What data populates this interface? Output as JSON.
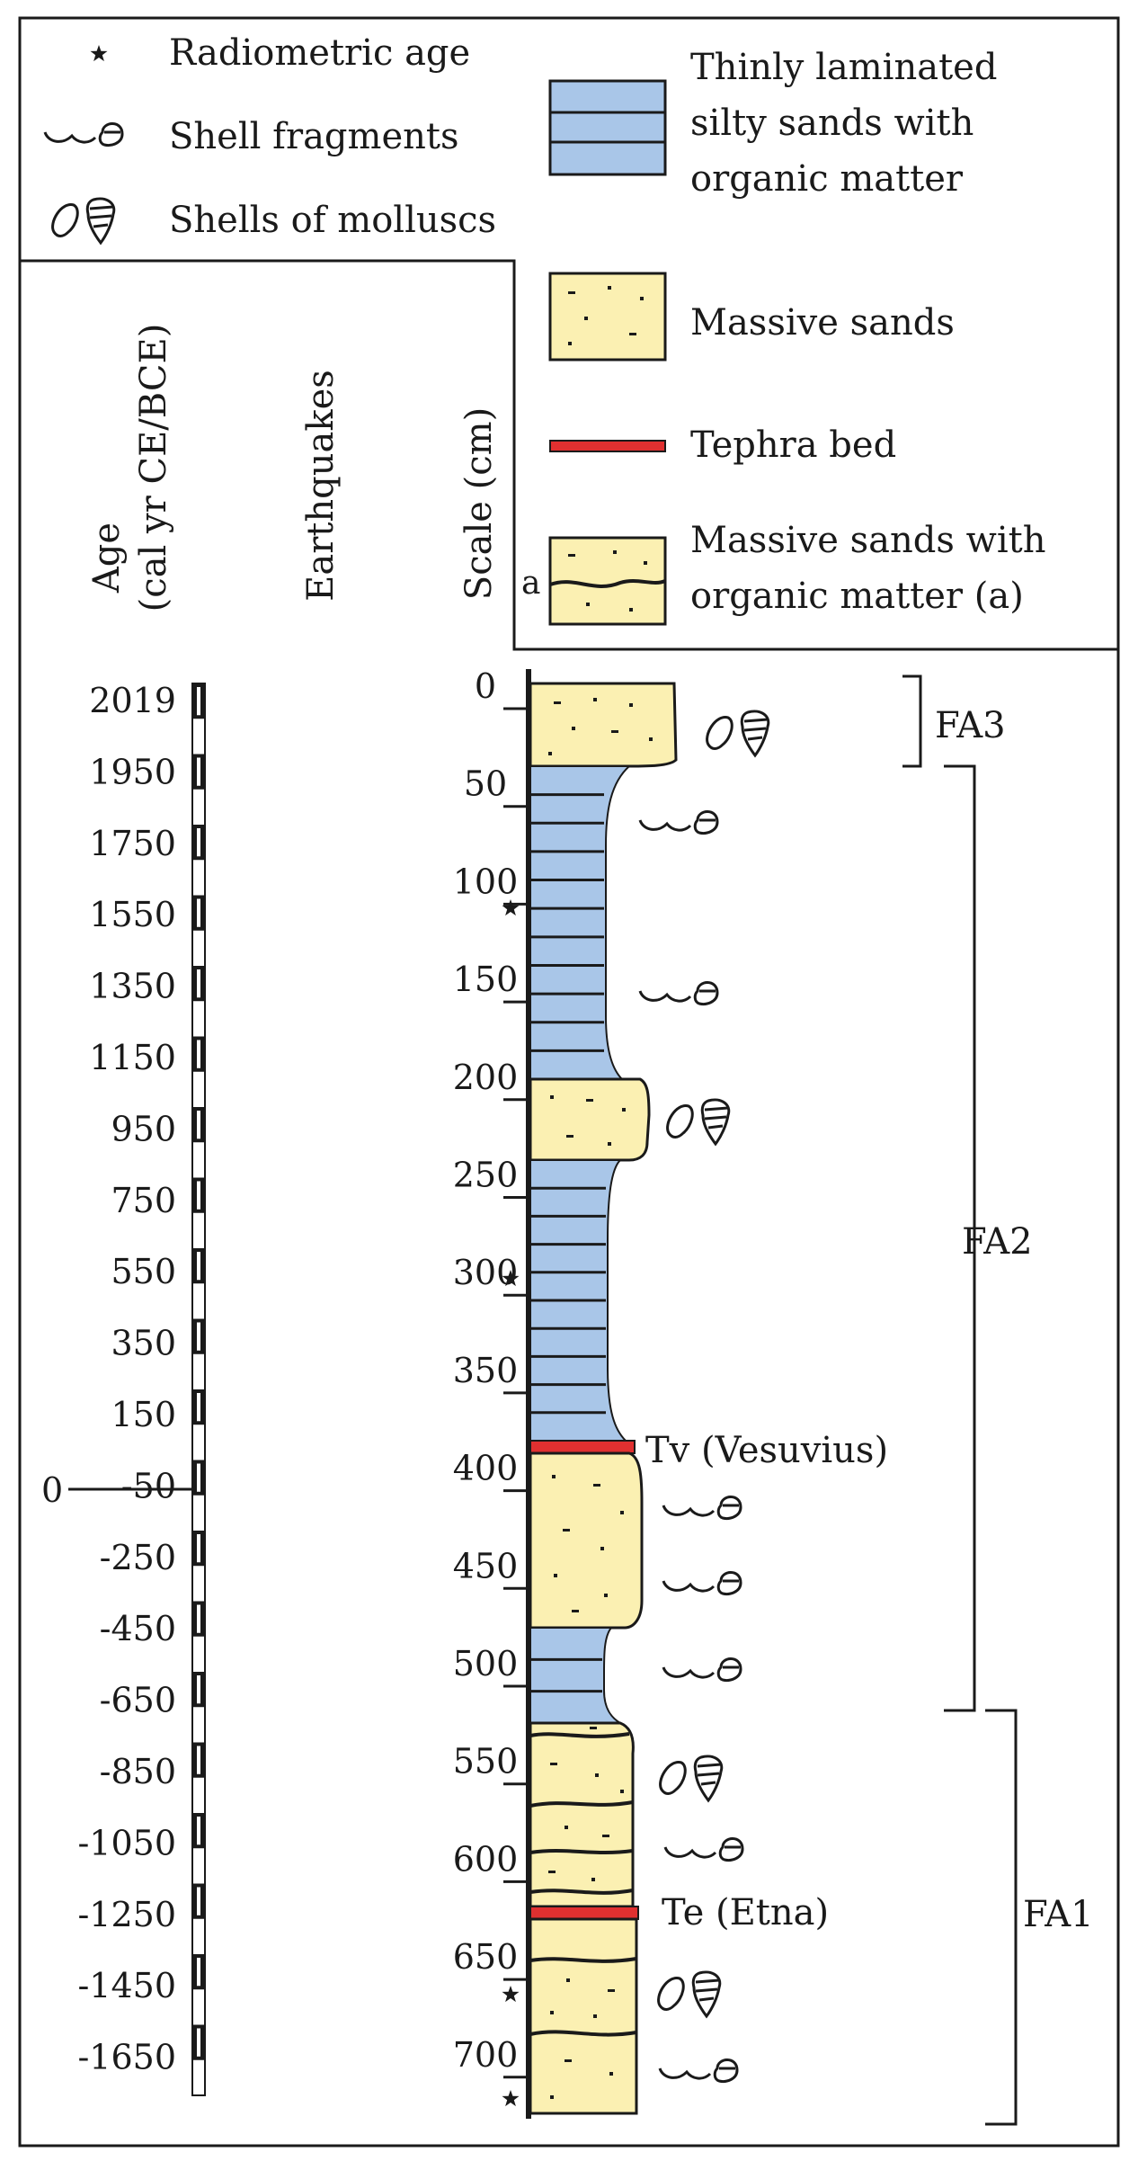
{
  "legend": {
    "symbols": [
      {
        "icon": "star-icon",
        "label": "Radiometric age"
      },
      {
        "icon": "shell-fragment-icon",
        "label": "Shell fragments"
      },
      {
        "icon": "mollusc-shell-icon",
        "label": "Shells of molluscs"
      }
    ],
    "lithologies": [
      {
        "fill": "#a9c6e8",
        "pattern": "laminated",
        "lines": [
          "Thinly laminated",
          "silty sands with",
          "organic matter"
        ]
      },
      {
        "fill": "#fbf0b2",
        "pattern": "dots",
        "lines": [
          "Massive  sands"
        ]
      },
      {
        "fill": "#e03030",
        "pattern": "line",
        "lines": [
          "Tephra bed"
        ]
      },
      {
        "fill": "#fbf0b2",
        "pattern": "dots-organic",
        "marker": "a",
        "lines": [
          "Massive sands with",
          "organic  matter (a)"
        ]
      }
    ]
  },
  "headers": {
    "age": [
      "Age",
      "(cal yr CE/BCE)"
    ],
    "earthquakes": "Earthquakes",
    "scale": "Scale (cm)"
  },
  "age_axis": {
    "ticks": [
      "2019",
      "1950",
      "1750",
      "1550",
      "1350",
      "1150",
      "950",
      "750",
      "550",
      "350",
      "150",
      "-50",
      "-250",
      "-450",
      "-650",
      "-850",
      "-1050",
      "-1250",
      "-1450",
      "-1650"
    ],
    "zero_label": "0"
  },
  "scale_axis": {
    "ticks": [
      "0",
      "50",
      "100",
      "150",
      "200",
      "250",
      "300",
      "350",
      "400",
      "450",
      "500",
      "550",
      "600",
      "650",
      "700"
    ]
  },
  "tephra_labels": [
    "Tv (Vesuvius)",
    "Te (Etna)"
  ],
  "facies": [
    "FA3",
    "FA2",
    "FA1"
  ],
  "colors": {
    "sand": "#fbf0b2",
    "laminated": "#a9c6e8",
    "tephra": "#e03030",
    "ink": "#1a1a1a"
  }
}
